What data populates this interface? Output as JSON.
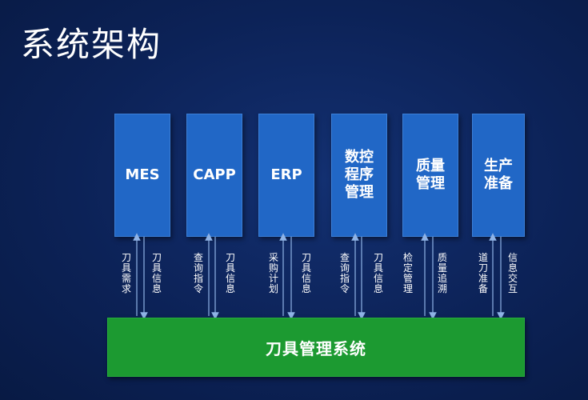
{
  "title": "系统架构",
  "systems": [
    {
      "label": "MES"
    },
    {
      "label": "CAPP"
    },
    {
      "label": "ERP"
    },
    {
      "label": "数控\n程序\n管理"
    },
    {
      "label": "质量\n管理"
    },
    {
      "label": "生产\n准备"
    }
  ],
  "bottom": {
    "label": "刀具管理系统"
  },
  "flows": [
    {
      "up": "刀\n具\n需\n求",
      "down": "刀\n具\n信\n息"
    },
    {
      "up": "查\n询\n指\n令",
      "down": "刀\n具\n信\n息"
    },
    {
      "up": "采\n购\n计\n划",
      "down": "刀\n具\n信\n息"
    },
    {
      "up": "查\n询\n指\n令",
      "down": "刀\n具\n信\n息"
    },
    {
      "up": "检\n定\n管\n理",
      "down": "质\n量\n追\n溯"
    },
    {
      "up": "道\n刀\n准\n备",
      "down": "信\n息\n交\n互"
    }
  ],
  "colors": {
    "background": "#0c2257",
    "system_box": "#2167c6",
    "bottom_box": "#1c9a31",
    "arrow": "#8fb3e6"
  }
}
